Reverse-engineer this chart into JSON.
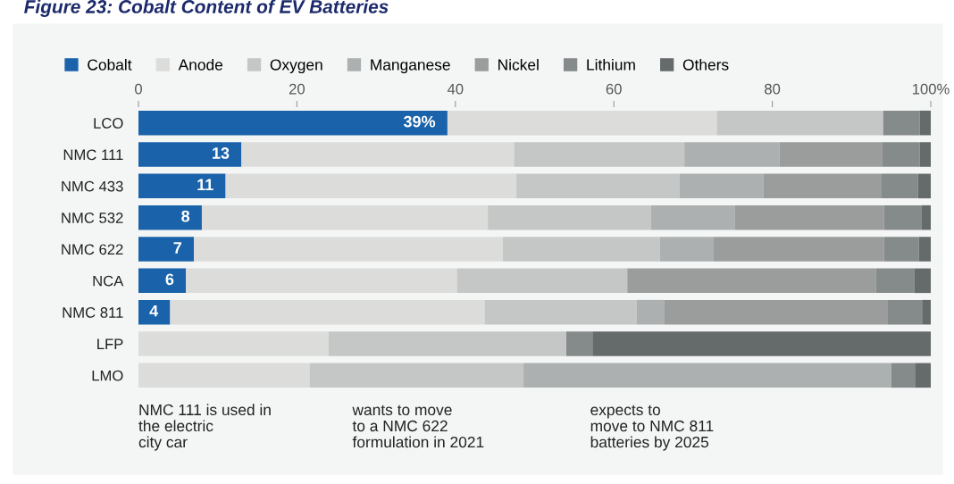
{
  "chart_data": {
    "type": "bar",
    "orientation": "horizontal",
    "stacked": true,
    "title": "Figure 23: Cobalt Content of EV Batteries",
    "categories": [
      "LCO",
      "NMC 111",
      "NMC 433",
      "NMC 532",
      "NMC 622",
      "NCA",
      "NMC 811",
      "LFP",
      "LMO"
    ],
    "series": [
      {
        "name": "Cobalt",
        "color": "#1a63aa",
        "values": [
          39,
          13,
          11,
          8,
          7,
          6,
          4,
          0,
          0
        ],
        "value_labels": [
          "39%",
          "13",
          "11",
          "8",
          "7",
          "6",
          "4",
          null,
          null
        ]
      },
      {
        "name": "Anode",
        "color": "#dcdcdb",
        "values": [
          34,
          34.4,
          36.7,
          36.1,
          39,
          34.2,
          39.7,
          24,
          21.6
        ]
      },
      {
        "name": "Oxygen",
        "color": "#c5c7c6",
        "values": [
          21,
          21.5,
          20.6,
          20.6,
          19.8,
          21.5,
          19.2,
          30,
          27
        ]
      },
      {
        "name": "Manganese",
        "color": "#adb0b0",
        "values": [
          0,
          12,
          10.6,
          10.6,
          6.8,
          0,
          3.5,
          0,
          46.4
        ]
      },
      {
        "name": "Nickel",
        "color": "#9b9d9c",
        "values": [
          0,
          13,
          14.9,
          18.8,
          21.5,
          31.4,
          28.1,
          0,
          0
        ]
      },
      {
        "name": "Lithium",
        "color": "#858a8a",
        "values": [
          4.6,
          4.7,
          4.6,
          4.7,
          4.4,
          4.8,
          4.4,
          3.3,
          3
        ]
      },
      {
        "name": "Others",
        "color": "#656b6b",
        "values": [
          1.4,
          1.4,
          1.6,
          1.2,
          1.5,
          2.1,
          1.1,
          42.7,
          2
        ]
      }
    ],
    "xlim": [
      0,
      100
    ],
    "xticks": [
      0,
      20,
      40,
      60,
      80,
      {
        "value": 100,
        "label": "100%"
      }
    ],
    "grid": false,
    "legend": "top left",
    "annotations": [
      "NMC 111 is used in\nthe electric\ncity car",
      "wants to move\nto a NMC 622\nformulation in 2021",
      "expects to\nmove to NMC 811\nbatteries by 2025"
    ]
  }
}
